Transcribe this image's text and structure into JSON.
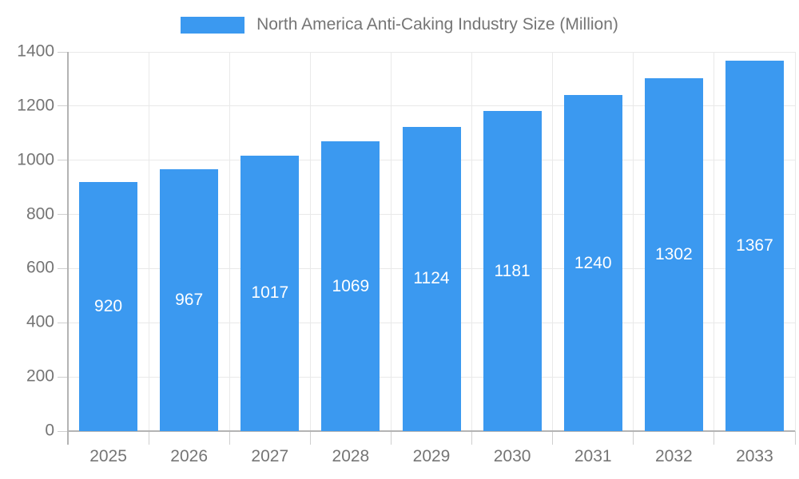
{
  "legend": {
    "label": "North America Anti-Caking Industry Size (Million)"
  },
  "chart_data": {
    "type": "bar",
    "title": "North America Anti-Caking Industry Size (Million)",
    "series_name": "North America Anti-Caking Industry Size (Million)",
    "categories": [
      "2025",
      "2026",
      "2027",
      "2028",
      "2029",
      "2030",
      "2031",
      "2032",
      "2033"
    ],
    "values": [
      920,
      967,
      1017,
      1069,
      1124,
      1181,
      1240,
      1302,
      1367
    ],
    "bar_value_labels": [
      "920",
      "967",
      "1017",
      "1069",
      "1124",
      "1181",
      "1240",
      "1302",
      "1367"
    ],
    "xlabel": "",
    "ylabel": "",
    "ylim": [
      0,
      1400
    ],
    "ytick_step": 200,
    "ytick_labels": [
      "0",
      "200",
      "400",
      "600",
      "800",
      "1000",
      "1200",
      "1400"
    ],
    "grid": true,
    "legend_position": "top-center",
    "colors": {
      "bar": "#3b99f0",
      "bar_label_text": "#ffffff",
      "axis_text": "#757575",
      "gridline": "#e9e9e9",
      "axis_line": "#b3b3b3",
      "tick": "#cfcfcf",
      "background": "#ffffff"
    }
  }
}
